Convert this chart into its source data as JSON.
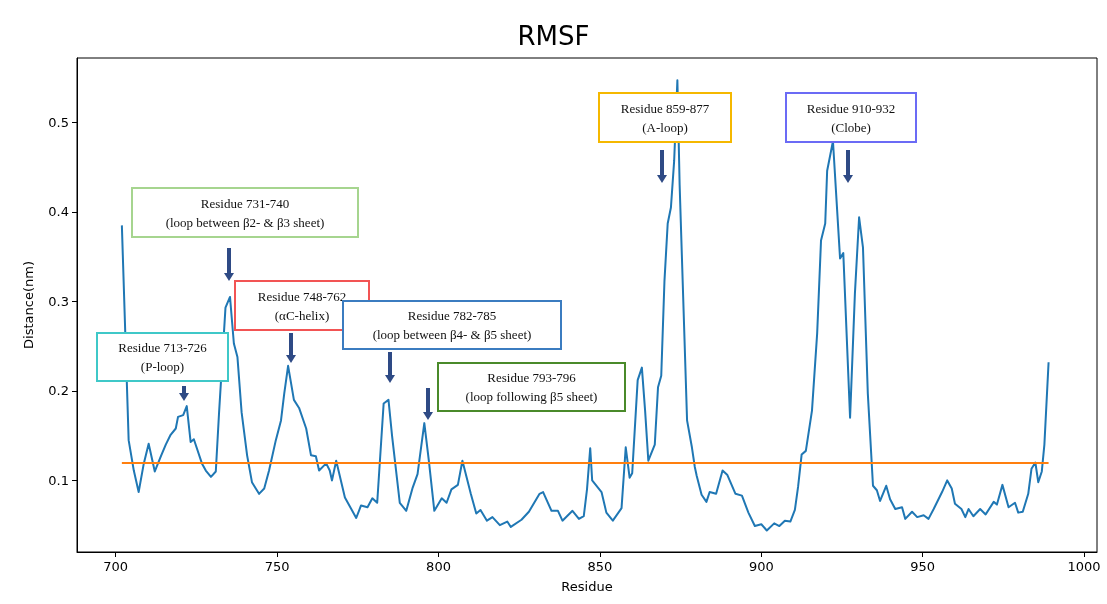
{
  "chart_data": {
    "type": "line",
    "title": "RMSF",
    "xlabel": "Residue",
    "ylabel": "Distance(nm)",
    "xlim": [
      688,
      1004
    ],
    "xticks": [
      700,
      750,
      800,
      850,
      900,
      950,
      1000
    ],
    "ylim": [
      0.02,
      0.572
    ],
    "yticks": [
      0.1,
      0.2,
      0.3,
      0.4,
      0.5
    ],
    "grid": false,
    "marker": "none",
    "line_style": "solid",
    "series": [
      {
        "color": "#1f77b4",
        "x": [
          701.9,
          704,
          705.6,
          707.1,
          708.7,
          710.2,
          712.1,
          714,
          715.5,
          717,
          718.6,
          719.3,
          720.9,
          722,
          723.2,
          724.2,
          726.7,
          727.9,
          729.5,
          731,
          732,
          734,
          735.4,
          736.6,
          737.7,
          739,
          740.7,
          742.2,
          744.4,
          746,
          747.5,
          749.6,
          751.2,
          752.2,
          753.4,
          755.2,
          756.8,
          759,
          760.5,
          762,
          763,
          765.2,
          766.3,
          767,
          768.3,
          771,
          774.5,
          776,
          778,
          779.5,
          781,
          783,
          784.5,
          785.6,
          788,
          790,
          792,
          793.5,
          795.6,
          797,
          798.7,
          801,
          802.5,
          804,
          806,
          807.4,
          810,
          811.7,
          813,
          815,
          816.7,
          819,
          821.3,
          822.4,
          825.7,
          828,
          831.3,
          832.4,
          835,
          837,
          838.4,
          841.5,
          843.5,
          845,
          846,
          847,
          847.6,
          850.5,
          852,
          854,
          856.7,
          858,
          859.2,
          860,
          861.7,
          863,
          864,
          865,
          867,
          868,
          869,
          870,
          871,
          872,
          873,
          874,
          874.7,
          877,
          878.5,
          879.4,
          880,
          881.5,
          883,
          884,
          886,
          888,
          889.5,
          892,
          894,
          896,
          898,
          900,
          901.7,
          904,
          905.6,
          907.3,
          909,
          910.4,
          911.4,
          912.5,
          913.8,
          915.7,
          917.3,
          918.5,
          919.8,
          920.4,
          922.2,
          924.4,
          925.4,
          927.5,
          929,
          930.3,
          931.5,
          933,
          934.6,
          935.8,
          936.8,
          938.7,
          939.9,
          941.5,
          943.6,
          944.6,
          946.7,
          948.3,
          950.3,
          951.8,
          953.4,
          956,
          957.6,
          959,
          960,
          962,
          963.2,
          964.2,
          965.7,
          967.8,
          969.5,
          972,
          973,
          974.7,
          976.6,
          978.6,
          979.6,
          981,
          982.7,
          983.7,
          984.9,
          985.8,
          986.9,
          987.7,
          989
        ],
        "values": [
          0.385,
          0.145,
          0.111,
          0.087,
          0.119,
          0.141,
          0.11,
          0.127,
          0.14,
          0.151,
          0.158,
          0.171,
          0.173,
          0.183,
          0.143,
          0.146,
          0.119,
          0.111,
          0.104,
          0.11,
          0.175,
          0.293,
          0.305,
          0.253,
          0.238,
          0.176,
          0.128,
          0.098,
          0.085,
          0.091,
          0.111,
          0.145,
          0.167,
          0.197,
          0.228,
          0.19,
          0.181,
          0.158,
          0.128,
          0.127,
          0.111,
          0.119,
          0.111,
          0.1,
          0.122,
          0.081,
          0.058,
          0.072,
          0.07,
          0.08,
          0.075,
          0.186,
          0.19,
          0.15,
          0.075,
          0.066,
          0.092,
          0.107,
          0.164,
          0.122,
          0.066,
          0.08,
          0.075,
          0.09,
          0.095,
          0.122,
          0.085,
          0.063,
          0.067,
          0.055,
          0.059,
          0.05,
          0.054,
          0.048,
          0.056,
          0.065,
          0.085,
          0.087,
          0.066,
          0.066,
          0.055,
          0.066,
          0.057,
          0.06,
          0.09,
          0.136,
          0.1,
          0.087,
          0.064,
          0.055,
          0.069,
          0.137,
          0.103,
          0.108,
          0.212,
          0.226,
          0.178,
          0.122,
          0.14,
          0.204,
          0.217,
          0.323,
          0.387,
          0.405,
          0.457,
          0.547,
          0.43,
          0.167,
          0.137,
          0.115,
          0.105,
          0.084,
          0.076,
          0.087,
          0.085,
          0.111,
          0.106,
          0.085,
          0.083,
          0.064,
          0.049,
          0.051,
          0.044,
          0.052,
          0.049,
          0.055,
          0.054,
          0.067,
          0.093,
          0.129,
          0.133,
          0.178,
          0.264,
          0.368,
          0.387,
          0.446,
          0.479,
          0.348,
          0.354,
          0.17,
          0.309,
          0.394,
          0.36,
          0.197,
          0.094,
          0.089,
          0.077,
          0.094,
          0.079,
          0.068,
          0.07,
          0.057,
          0.065,
          0.059,
          0.061,
          0.057,
          0.068,
          0.087,
          0.1,
          0.091,
          0.074,
          0.068,
          0.059,
          0.068,
          0.06,
          0.068,
          0.062,
          0.076,
          0.073,
          0.095,
          0.07,
          0.075,
          0.064,
          0.065,
          0.085,
          0.113,
          0.12,
          0.098,
          0.11,
          0.14,
          0.232
        ]
      }
    ],
    "ref_lines": [
      {
        "axis": "y",
        "value": 0.12,
        "color": "#ff7f0e",
        "line_style": "solid"
      }
    ],
    "annotations": [
      "Residue 713-726\n(P-loop)",
      "Residue 731-740\n(loop between β2- & β3 sheet)",
      "Residue 748-762\n(αC-helix)",
      "Residue 782-785\n(loop between β4- & β5 sheet)",
      "Residue 793-796\n(loop following β5 sheet)",
      "Residue 859-877\n(A-loop)",
      "Residue 910-932\n(Clobe)"
    ]
  }
}
